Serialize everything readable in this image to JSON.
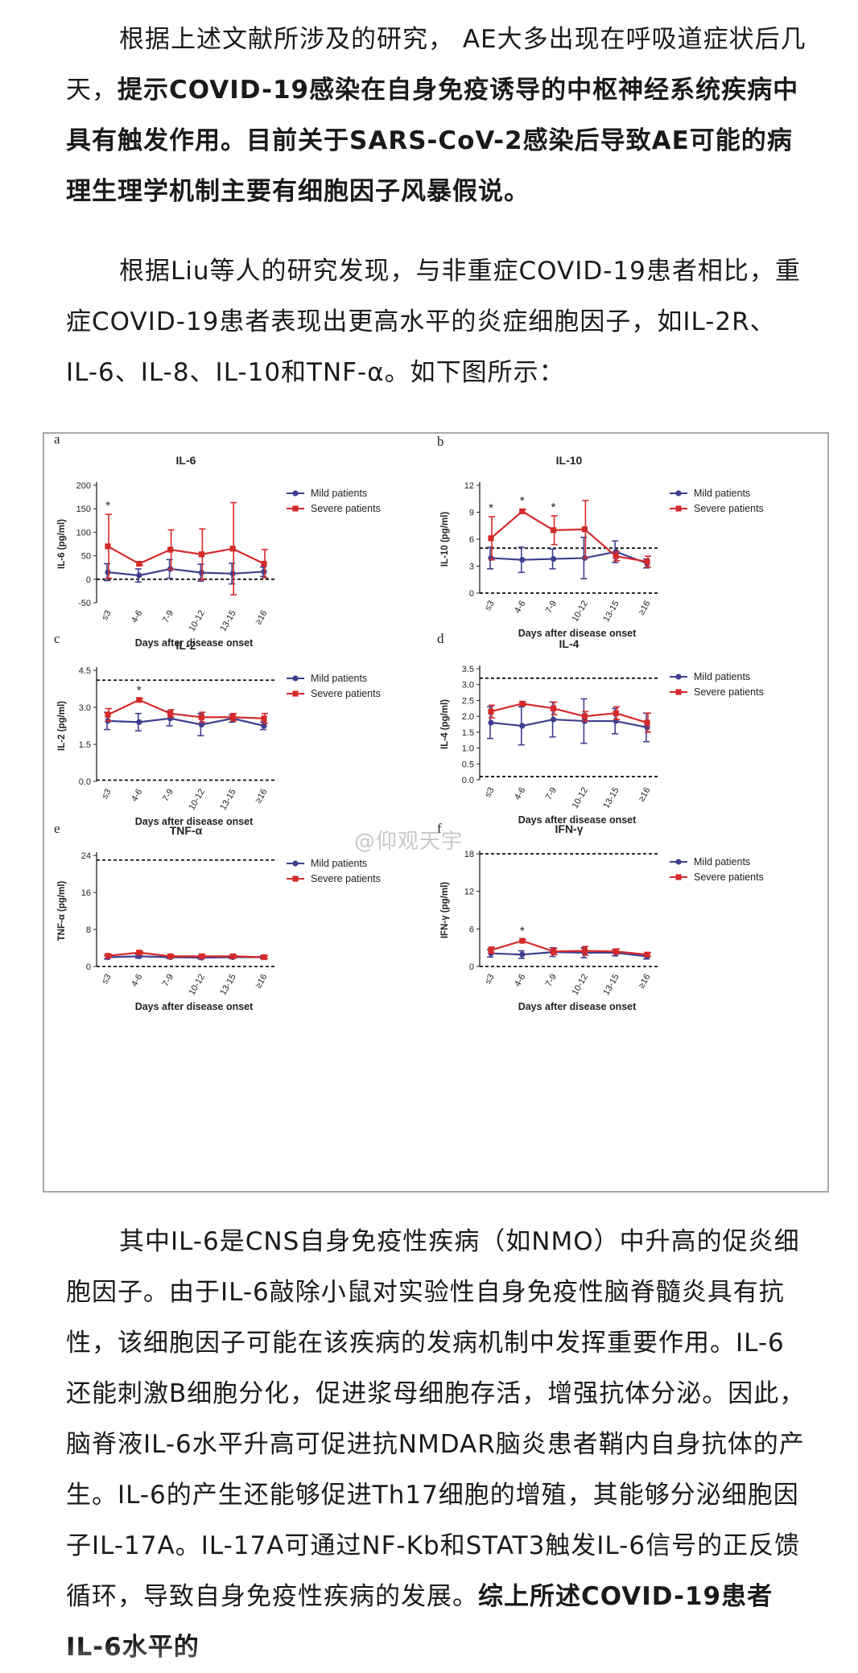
{
  "article": {
    "p1_a": "根据上述文献所涉及的研究， AE大多出现在呼吸道症状后几天，",
    "p1_b": "提示COVID-19感染在自身免疫诱导的中枢神经系统疾病中具有触发作用。目前关于SARS-CoV-2感染后导致AE可能的病理生理学机制主要有细胞因子风暴假说。",
    "p2": "根据Liu等人的研究发现，与非重症COVID-19患者相比，重症COVID-19患者表现出更高水平的炎症细胞因子，如IL-2R、IL-6、IL-8、IL-10和TNF-α。如下图所示：",
    "p3_a": "其中IL-6是CNS自身免疫性疾病（如NMO）中升高的促炎细胞因子。由于IL-6敲除小鼠对实验性自身免疫性脑脊髓炎具有抗性，该细胞因子可能在该疾病的发病机制中发挥重要作用。IL-6还能刺激B细胞分化，促进浆母细胞存活，增强抗体分泌。因此，脑脊液IL-6水平升高可促进抗NMDAR脑炎患者鞘内自身抗体的产生。IL-6的产生还能够促进Th17细胞的增殖，其能够分泌细胞因子IL-17A。IL-17A可通过NF-Kb和STAT3触发IL-6信号的正反馈循环，导致自身免疫性疾病的发展。",
    "p3_b": "综上所述COVID-19患者IL-6水平的"
  },
  "watermark": "@仰观天宇",
  "colors": {
    "mild": "#3f3f8f",
    "severe": "#d42a2a",
    "axis": "#222222"
  },
  "chart_data": [
    {
      "panel": "a",
      "type": "line",
      "title": "IL-6",
      "ylabel": "IL-6 (pg/ml)",
      "xlabel": "Days after disease onset",
      "categories": [
        "≤3",
        "4-6",
        "7-9",
        "10-12",
        "13-15",
        "≥16"
      ],
      "ylim": [
        -50,
        200
      ],
      "yticks": [
        -50,
        0,
        50,
        100,
        150,
        200
      ],
      "ref_lines": [
        0
      ],
      "series": [
        {
          "name": "Mild patients",
          "values": [
            15,
            8,
            22,
            14,
            12,
            16
          ],
          "err": [
            18,
            14,
            20,
            18,
            22,
            10
          ]
        },
        {
          "name": "Severe patients",
          "values": [
            70,
            33,
            63,
            53,
            65,
            33
          ],
          "err": [
            68,
            3,
            42,
            54,
            98,
            30
          ]
        }
      ],
      "sig": [
        0
      ],
      "legend": "top-right"
    },
    {
      "panel": "b",
      "type": "line",
      "title": "IL-10",
      "ylabel": "IL-10 (pg/ml)",
      "xlabel": "Days after disease onset",
      "categories": [
        "≤3",
        "4-6",
        "7-9",
        "10-12",
        "13-15",
        "≥16"
      ],
      "ylim": [
        0,
        12
      ],
      "yticks": [
        0,
        3,
        6,
        9,
        12
      ],
      "ref_lines": [
        5,
        0
      ],
      "series": [
        {
          "name": "Mild patients",
          "values": [
            3.9,
            3.7,
            3.8,
            3.9,
            4.6,
            3.3
          ],
          "err": [
            1.2,
            1.4,
            1.1,
            2.3,
            1.2,
            0.5
          ]
        },
        {
          "name": "Severe patients",
          "values": [
            6.1,
            9.1,
            7.0,
            7.1,
            4.1,
            3.5
          ],
          "err": [
            2.4,
            0.2,
            1.6,
            3.2,
            0.5,
            0.6
          ]
        }
      ],
      "sig": [
        0,
        1,
        2
      ],
      "legend": "top-right"
    },
    {
      "panel": "c",
      "type": "line",
      "title": "IL-2",
      "ylabel": "IL-2 (pg/ml)",
      "xlabel": "Days after disease onset",
      "categories": [
        "≤3",
        "4-6",
        "7-9",
        "10-12",
        "13-15",
        "≥16"
      ],
      "ylim": [
        0,
        4.5
      ],
      "yticks": [
        0.0,
        1.5,
        3.0,
        4.5
      ],
      "ref_lines": [
        4.1,
        0.05
      ],
      "series": [
        {
          "name": "Mild patients",
          "values": [
            2.45,
            2.4,
            2.55,
            2.3,
            2.55,
            2.25
          ],
          "err": [
            0.35,
            0.35,
            0.3,
            0.45,
            0.15,
            0.15
          ]
        },
        {
          "name": "Severe patients",
          "values": [
            2.7,
            3.3,
            2.75,
            2.6,
            2.6,
            2.55
          ],
          "err": [
            0.25,
            0.05,
            0.15,
            0.2,
            0.15,
            0.2
          ]
        }
      ],
      "sig": [
        1
      ],
      "legend": "top-right"
    },
    {
      "panel": "d",
      "type": "line",
      "title": "IL-4",
      "ylabel": "IL-4 (pg/ml)",
      "xlabel": "Days after disease onset",
      "categories": [
        "≤3",
        "4-6",
        "7-9",
        "10-12",
        "13-15",
        "≥16"
      ],
      "ylim": [
        0,
        3.5
      ],
      "yticks": [
        0.0,
        0.5,
        1.0,
        1.5,
        2.0,
        2.5,
        3.0,
        3.5
      ],
      "ref_lines": [
        3.2,
        0.1
      ],
      "series": [
        {
          "name": "Mild patients",
          "values": [
            1.8,
            1.7,
            1.9,
            1.85,
            1.85,
            1.65
          ],
          "err": [
            0.5,
            0.6,
            0.55,
            0.7,
            0.4,
            0.45
          ]
        },
        {
          "name": "Severe patients",
          "values": [
            2.15,
            2.4,
            2.25,
            2.0,
            2.1,
            1.8
          ],
          "err": [
            0.2,
            0.05,
            0.2,
            0.15,
            0.2,
            0.3
          ]
        }
      ],
      "sig": [],
      "legend": "top-right"
    },
    {
      "panel": "e",
      "type": "line",
      "title": "TNF-α",
      "ylabel": "TNF-α (pg/ml)",
      "xlabel": "Days after disease onset",
      "categories": [
        "≤3",
        "4-6",
        "7-9",
        "10-12",
        "13-15",
        "≥16"
      ],
      "ylim": [
        0,
        24
      ],
      "yticks": [
        0,
        8,
        16,
        24
      ],
      "ref_lines": [
        23,
        0
      ],
      "series": [
        {
          "name": "Mild patients",
          "values": [
            2.0,
            2.2,
            2.0,
            1.9,
            2.0,
            2.0
          ],
          "err": [
            0.4,
            0.4,
            0.3,
            0.3,
            0.3,
            0.3
          ]
        },
        {
          "name": "Severe patients",
          "values": [
            2.3,
            3.0,
            2.2,
            2.2,
            2.2,
            2.0
          ],
          "err": [
            0.3,
            0.3,
            0.3,
            0.4,
            0.3,
            0.3
          ]
        }
      ],
      "sig": [],
      "legend": "top-right"
    },
    {
      "panel": "f",
      "type": "line",
      "title": "IFN-γ",
      "ylabel": "IFN-γ (pg/ml)",
      "xlabel": "Days after disease onset",
      "categories": [
        "≤3",
        "4-6",
        "7-9",
        "10-12",
        "13-15",
        "≥16"
      ],
      "ylim": [
        0,
        18
      ],
      "yticks": [
        0,
        6,
        12,
        18
      ],
      "ref_lines": [
        18,
        0
      ],
      "series": [
        {
          "name": "Mild patients",
          "values": [
            2.1,
            1.9,
            2.3,
            2.2,
            2.2,
            1.6
          ],
          "err": [
            0.6,
            0.6,
            0.7,
            0.8,
            0.5,
            0.4
          ]
        },
        {
          "name": "Severe patients",
          "values": [
            2.6,
            4.1,
            2.4,
            2.5,
            2.4,
            1.9
          ],
          "err": [
            0.5,
            0.2,
            0.5,
            0.7,
            0.4,
            0.3
          ]
        }
      ],
      "sig": [
        1
      ],
      "legend": "top-right"
    }
  ]
}
